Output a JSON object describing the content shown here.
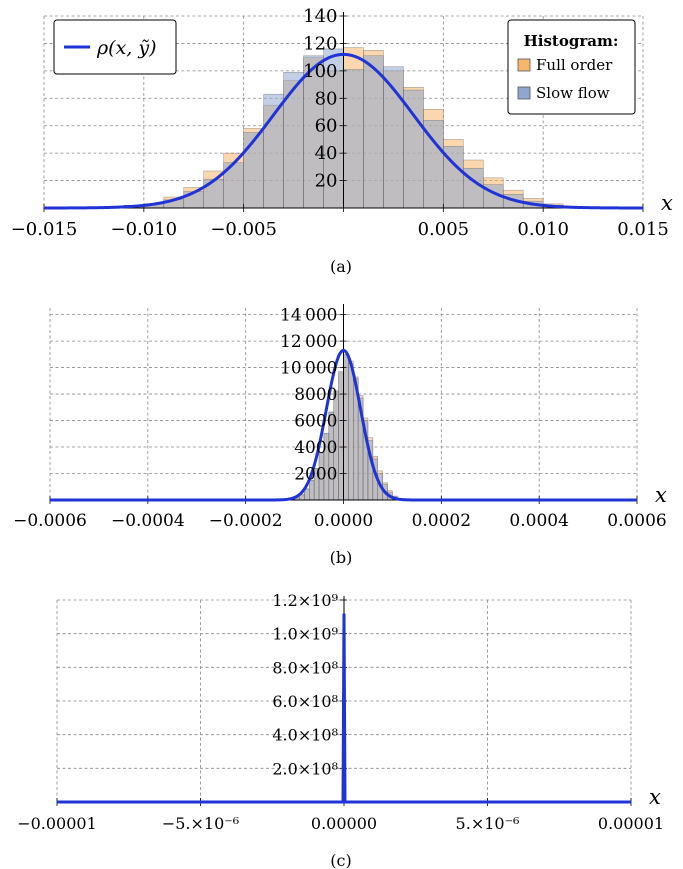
{
  "chart_data": [
    {
      "type": "bar",
      "panel_label": "(a)",
      "xlabel": "x",
      "xlim": [
        -0.015,
        0.015
      ],
      "ylim": [
        0,
        140
      ],
      "x_tick_values": [
        -0.015,
        -0.01,
        -0.005,
        0,
        0.005,
        0.01,
        0.015
      ],
      "x_tick_labels": [
        "−0.015",
        "−0.010",
        "−0.005",
        "",
        "0.005",
        "0.010",
        "0.015"
      ],
      "y_tick_values": [
        20,
        40,
        60,
        80,
        100,
        120,
        140
      ],
      "y_tick_labels": [
        "20",
        "40",
        "60",
        "80",
        "100",
        "120",
        "140"
      ],
      "grid": true,
      "legend_curve": {
        "label": "ρ(x, ỹ)",
        "position": "top-left"
      },
      "legend_hist": {
        "title": "Histogram:",
        "position": "top-right"
      },
      "bin_width": 0.001,
      "bin_start": -0.012,
      "series": [
        {
          "name": "Full order",
          "kind": "histogram",
          "values": [
            1,
            2,
            3,
            8,
            15,
            27,
            40,
            58,
            75,
            93,
            110,
            100,
            117,
            115,
            100,
            88,
            72,
            50,
            35,
            22,
            13,
            7,
            3,
            1
          ]
        },
        {
          "name": "Slow flow",
          "kind": "histogram",
          "values": [
            1,
            2,
            3,
            6,
            12,
            21,
            33,
            55,
            83,
            99,
            111,
            116,
            101,
            111,
            103,
            86,
            64,
            45,
            29,
            17,
            10,
            5,
            2,
            1
          ]
        },
        {
          "name": "ρ(x, ỹ)",
          "kind": "curve",
          "peak": 112,
          "mean": 0,
          "sigma": 0.0035
        }
      ]
    },
    {
      "type": "bar",
      "panel_label": "(b)",
      "xlabel": "x",
      "xlim": [
        -0.0006,
        0.0006
      ],
      "ylim": [
        0,
        14500
      ],
      "x_tick_values": [
        -0.0006,
        -0.0004,
        -0.0002,
        0,
        0.0002,
        0.0004,
        0.0006
      ],
      "x_tick_labels": [
        "−0.0006",
        "−0.0004",
        "−0.0002",
        "0.0000",
        "0.0002",
        "0.0004",
        "0.0006"
      ],
      "y_tick_values": [
        2000,
        4000,
        6000,
        8000,
        10000,
        12000,
        14000
      ],
      "y_tick_labels": [
        "2000",
        "4000",
        "6000",
        "8000",
        "10 000",
        "12 000",
        "14 000"
      ],
      "grid": true,
      "bin_width": 1e-05,
      "bin_start": -0.00011,
      "series": [
        {
          "name": "Full order",
          "kind": "histogram",
          "values": [
            60,
            180,
            420,
            850,
            1500,
            2400,
            3600,
            5000,
            6600,
            8200,
            9600,
            10900,
            10500,
            9300,
            7900,
            6200,
            4700,
            3300,
            2200,
            1300,
            700,
            300
          ]
        },
        {
          "name": "Slow flow",
          "kind": "histogram",
          "values": [
            50,
            150,
            380,
            800,
            1450,
            2350,
            3550,
            5050,
            6650,
            8250,
            9700,
            11000,
            10300,
            9200,
            7700,
            6000,
            4500,
            3100,
            2000,
            1200,
            600,
            250
          ]
        },
        {
          "name": "ρ(x, ỹ)",
          "kind": "curve",
          "peak": 11300,
          "mean": 0,
          "sigma": 3.5e-05
        }
      ]
    },
    {
      "type": "line",
      "panel_label": "(c)",
      "xlabel": "x",
      "xlim": [
        -1e-05,
        1e-05
      ],
      "ylim": [
        0,
        1200000000.0
      ],
      "x_tick_values": [
        -1e-05,
        -5e-06,
        0,
        5e-06,
        1e-05
      ],
      "x_tick_labels": [
        "−0.00001",
        "−5.×10⁻⁶",
        "0.00000",
        "5.×10⁻⁶",
        "0.00001"
      ],
      "y_tick_values": [
        200000000.0,
        400000000.0,
        600000000.0,
        800000000.0,
        1000000000.0,
        1200000000.0
      ],
      "y_tick_labels": [
        "2.0×10⁸",
        "4.0×10⁸",
        "6.0×10⁸",
        "8.0×10⁸",
        "1.0×10⁹",
        "1.2×10⁹"
      ],
      "grid": true,
      "series": [
        {
          "name": "ρ(x, ỹ)",
          "kind": "curve",
          "peak": 1120000000.0,
          "mean": 0,
          "sigma": 3.5e-10
        }
      ]
    }
  ],
  "legend_entries": [
    "Full order",
    "Slow flow"
  ],
  "colors": {
    "full_order": "#f5b76b",
    "slow_flow": "#8fa7cf",
    "overlap": "#b5b2a6",
    "curve": "#1f33d6",
    "grid": "#8a8a8a"
  }
}
